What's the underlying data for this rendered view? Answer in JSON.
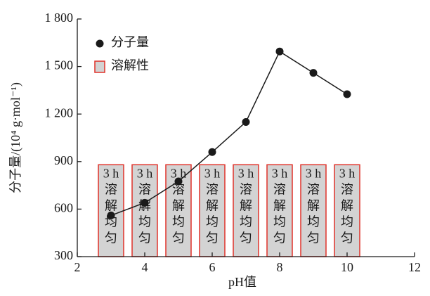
{
  "chart_data": {
    "type": "line",
    "xlabel": "pH值",
    "ylabel": "分子量/(10⁴ g·mol⁻¹)",
    "xlim": [
      2,
      12
    ],
    "xticks": [
      2,
      4,
      6,
      8,
      10,
      12
    ],
    "ylim": [
      300,
      1800
    ],
    "yticks": [
      300,
      600,
      900,
      {
        "value": 1200,
        "label": "1 200"
      },
      {
        "value": 1500,
        "label": "1 500"
      },
      {
        "value": 1800,
        "label": "1 800"
      }
    ],
    "legend": "upper left",
    "series": [
      {
        "name": "分子量",
        "type": "line",
        "color": "#1a1a1a",
        "x": [
          3,
          4,
          5,
          6,
          7,
          8,
          9,
          10
        ],
        "values": [
          560,
          640,
          775,
          960,
          1150,
          1595,
          1460,
          1325
        ]
      },
      {
        "name": "溶解性",
        "type": "bar",
        "color": "#d3d3d3",
        "edgecolor": "#e0322a",
        "x": [
          3,
          4,
          5,
          6,
          7,
          8,
          9,
          10
        ],
        "values": [
          880,
          880,
          880,
          880,
          880,
          880,
          880,
          880
        ],
        "bar_text": [
          [
            "3 h",
            "溶",
            "解",
            "均",
            "匀"
          ],
          [
            "3 h",
            "溶",
            "解",
            "均",
            "匀"
          ],
          [
            "3 h",
            "溶",
            "解",
            "均",
            "匀"
          ],
          [
            "3 h",
            "溶",
            "解",
            "均",
            "匀"
          ],
          [
            "3 h",
            "溶",
            "解",
            "均",
            "匀"
          ],
          [
            "3 h",
            "溶",
            "解",
            "均",
            "匀"
          ],
          [
            "3 h",
            "溶",
            "解",
            "均",
            "匀"
          ],
          [
            "3 h",
            "溶",
            "解",
            "均",
            "匀"
          ]
        ]
      }
    ]
  }
}
